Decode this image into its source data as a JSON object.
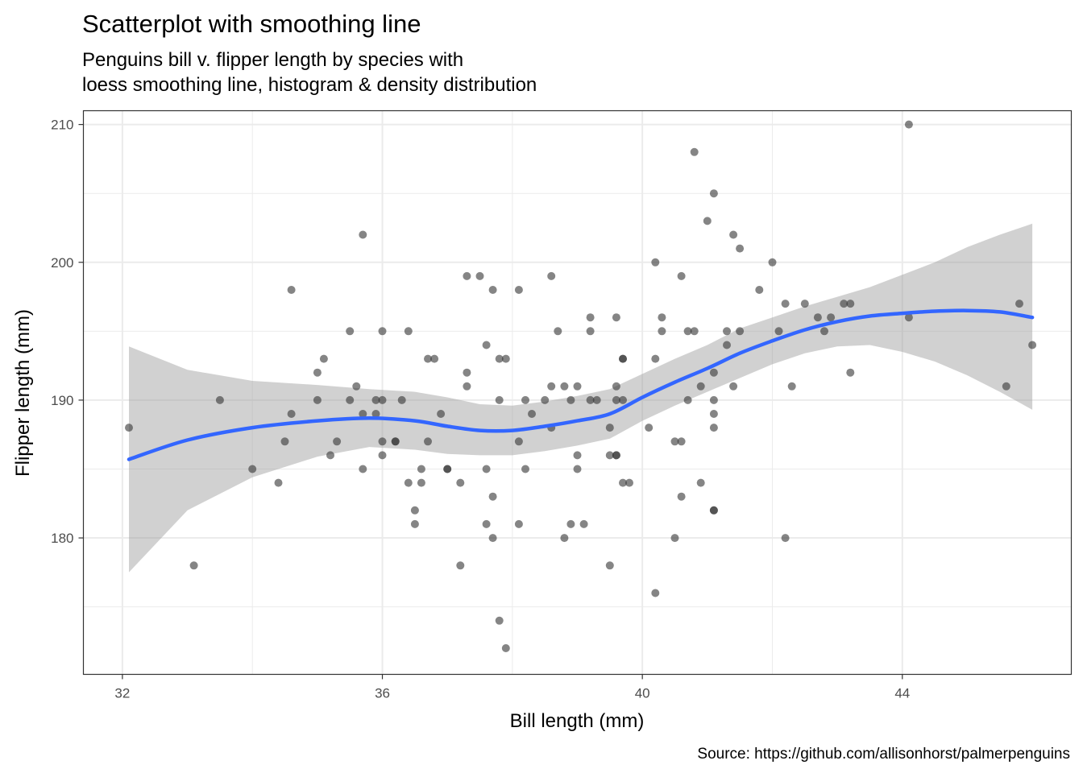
{
  "chart_data": {
    "type": "scatter",
    "title": "Scatterplot with smoothing line",
    "subtitle_lines": [
      "Penguins bill v. flipper length by species with",
      "loess smoothing line, histogram & density distribution"
    ],
    "xlabel": "Bill length (mm)",
    "ylabel": "Flipper length (mm)",
    "caption": "Source: https://github.com/allisonhorst/palmerpenguins",
    "xlim": [
      31.4,
      46.6
    ],
    "ylim": [
      170.1,
      211.0
    ],
    "xticks": [
      32,
      36,
      40,
      44
    ],
    "yticks": [
      180,
      190,
      200,
      210
    ],
    "grid": true,
    "colors": {
      "points": "#333333",
      "smooth_line": "#3366FF",
      "confidence_band": "#999999",
      "panel_border": "#333333",
      "grid": "#ebebeb"
    },
    "points": [
      [
        32.1,
        188
      ],
      [
        33.1,
        178
      ],
      [
        33.5,
        190
      ],
      [
        34.0,
        185
      ],
      [
        34.4,
        184
      ],
      [
        34.5,
        187
      ],
      [
        34.6,
        198
      ],
      [
        34.6,
        189
      ],
      [
        35.0,
        192
      ],
      [
        35.0,
        190
      ],
      [
        35.1,
        193
      ],
      [
        35.2,
        186
      ],
      [
        35.3,
        187
      ],
      [
        35.5,
        195
      ],
      [
        35.5,
        190
      ],
      [
        35.6,
        191
      ],
      [
        35.7,
        202
      ],
      [
        35.7,
        189
      ],
      [
        35.7,
        185
      ],
      [
        35.9,
        190
      ],
      [
        35.9,
        189
      ],
      [
        36.0,
        195
      ],
      [
        36.0,
        190
      ],
      [
        36.0,
        187
      ],
      [
        36.0,
        186
      ],
      [
        36.2,
        187
      ],
      [
        36.2,
        187
      ],
      [
        36.3,
        190
      ],
      [
        36.4,
        195
      ],
      [
        36.4,
        184
      ],
      [
        36.5,
        182
      ],
      [
        36.5,
        181
      ],
      [
        36.6,
        185
      ],
      [
        36.6,
        184
      ],
      [
        36.7,
        193
      ],
      [
        36.7,
        187
      ],
      [
        36.8,
        193
      ],
      [
        36.9,
        189
      ],
      [
        37.0,
        185
      ],
      [
        37.0,
        185
      ],
      [
        37.2,
        184
      ],
      [
        37.2,
        178
      ],
      [
        37.3,
        199
      ],
      [
        37.3,
        192
      ],
      [
        37.3,
        191
      ],
      [
        37.5,
        199
      ],
      [
        37.6,
        194
      ],
      [
        37.6,
        185
      ],
      [
        37.6,
        181
      ],
      [
        37.7,
        198
      ],
      [
        37.7,
        183
      ],
      [
        37.7,
        180
      ],
      [
        37.8,
        193
      ],
      [
        37.8,
        190
      ],
      [
        37.8,
        174
      ],
      [
        37.9,
        193
      ],
      [
        37.9,
        172
      ],
      [
        38.1,
        198
      ],
      [
        38.1,
        187
      ],
      [
        38.1,
        181
      ],
      [
        38.2,
        190
      ],
      [
        38.2,
        185
      ],
      [
        38.3,
        189
      ],
      [
        38.5,
        190
      ],
      [
        38.6,
        199
      ],
      [
        38.6,
        191
      ],
      [
        38.6,
        188
      ],
      [
        38.7,
        195
      ],
      [
        38.8,
        191
      ],
      [
        38.8,
        180
      ],
      [
        38.9,
        190
      ],
      [
        38.9,
        181
      ],
      [
        39.0,
        191
      ],
      [
        39.0,
        186
      ],
      [
        39.0,
        185
      ],
      [
        39.1,
        181
      ],
      [
        39.2,
        196
      ],
      [
        39.2,
        195
      ],
      [
        39.2,
        190
      ],
      [
        39.3,
        190
      ],
      [
        39.5,
        188
      ],
      [
        39.5,
        186
      ],
      [
        39.5,
        178
      ],
      [
        39.6,
        196
      ],
      [
        39.6,
        191
      ],
      [
        39.6,
        190
      ],
      [
        39.6,
        186
      ],
      [
        39.6,
        186
      ],
      [
        39.7,
        193
      ],
      [
        39.7,
        193
      ],
      [
        39.7,
        190
      ],
      [
        39.7,
        184
      ],
      [
        39.8,
        184
      ],
      [
        40.1,
        188
      ],
      [
        40.2,
        200
      ],
      [
        40.2,
        193
      ],
      [
        40.2,
        176
      ],
      [
        40.3,
        196
      ],
      [
        40.3,
        195
      ],
      [
        40.5,
        187
      ],
      [
        40.5,
        180
      ],
      [
        40.6,
        199
      ],
      [
        40.6,
        187
      ],
      [
        40.6,
        183
      ],
      [
        40.7,
        195
      ],
      [
        40.7,
        190
      ],
      [
        40.8,
        208
      ],
      [
        40.8,
        195
      ],
      [
        40.9,
        191
      ],
      [
        40.9,
        184
      ],
      [
        41.0,
        203
      ],
      [
        41.1,
        205
      ],
      [
        41.1,
        192
      ],
      [
        41.1,
        190
      ],
      [
        41.1,
        189
      ],
      [
        41.1,
        188
      ],
      [
        41.1,
        182
      ],
      [
        41.1,
        182
      ],
      [
        41.3,
        195
      ],
      [
        41.3,
        194
      ],
      [
        41.4,
        202
      ],
      [
        41.4,
        191
      ],
      [
        41.5,
        201
      ],
      [
        41.5,
        195
      ],
      [
        41.8,
        198
      ],
      [
        42.0,
        200
      ],
      [
        42.1,
        195
      ],
      [
        42.2,
        197
      ],
      [
        42.2,
        180
      ],
      [
        42.3,
        191
      ],
      [
        42.5,
        197
      ],
      [
        42.7,
        196
      ],
      [
        42.8,
        195
      ],
      [
        42.9,
        196
      ],
      [
        43.1,
        197
      ],
      [
        43.2,
        197
      ],
      [
        43.2,
        192
      ],
      [
        44.1,
        210
      ],
      [
        44.1,
        196
      ],
      [
        45.6,
        191
      ],
      [
        45.8,
        197
      ],
      [
        46.0,
        194
      ]
    ],
    "smooth": {
      "x": [
        32.1,
        33.0,
        34.0,
        35.0,
        35.8,
        36.5,
        37.0,
        37.5,
        38.0,
        38.5,
        39.0,
        39.5,
        40.0,
        40.5,
        41.0,
        41.5,
        42.0,
        42.5,
        43.0,
        43.5,
        44.0,
        44.5,
        45.0,
        45.5,
        46.0
      ],
      "y": [
        185.7,
        187.1,
        188.0,
        188.5,
        188.7,
        188.5,
        188.1,
        187.8,
        187.8,
        188.1,
        188.5,
        189.0,
        190.2,
        191.3,
        192.3,
        193.4,
        194.3,
        195.1,
        195.7,
        196.1,
        196.3,
        196.45,
        196.5,
        196.4,
        196.0
      ],
      "lower": [
        177.5,
        182.0,
        184.4,
        185.9,
        186.6,
        186.4,
        186.1,
        186.0,
        186.0,
        186.3,
        186.7,
        187.2,
        188.5,
        189.6,
        190.6,
        191.6,
        192.6,
        193.4,
        193.9,
        194.0,
        193.5,
        192.8,
        191.8,
        190.6,
        189.3
      ],
      "upper": [
        193.9,
        192.2,
        191.4,
        191.1,
        190.8,
        190.6,
        190.2,
        189.7,
        189.6,
        189.9,
        190.3,
        190.8,
        191.9,
        193.0,
        194.0,
        195.2,
        196.0,
        196.8,
        197.5,
        198.2,
        199.1,
        200.0,
        201.1,
        202.0,
        202.8
      ]
    }
  }
}
